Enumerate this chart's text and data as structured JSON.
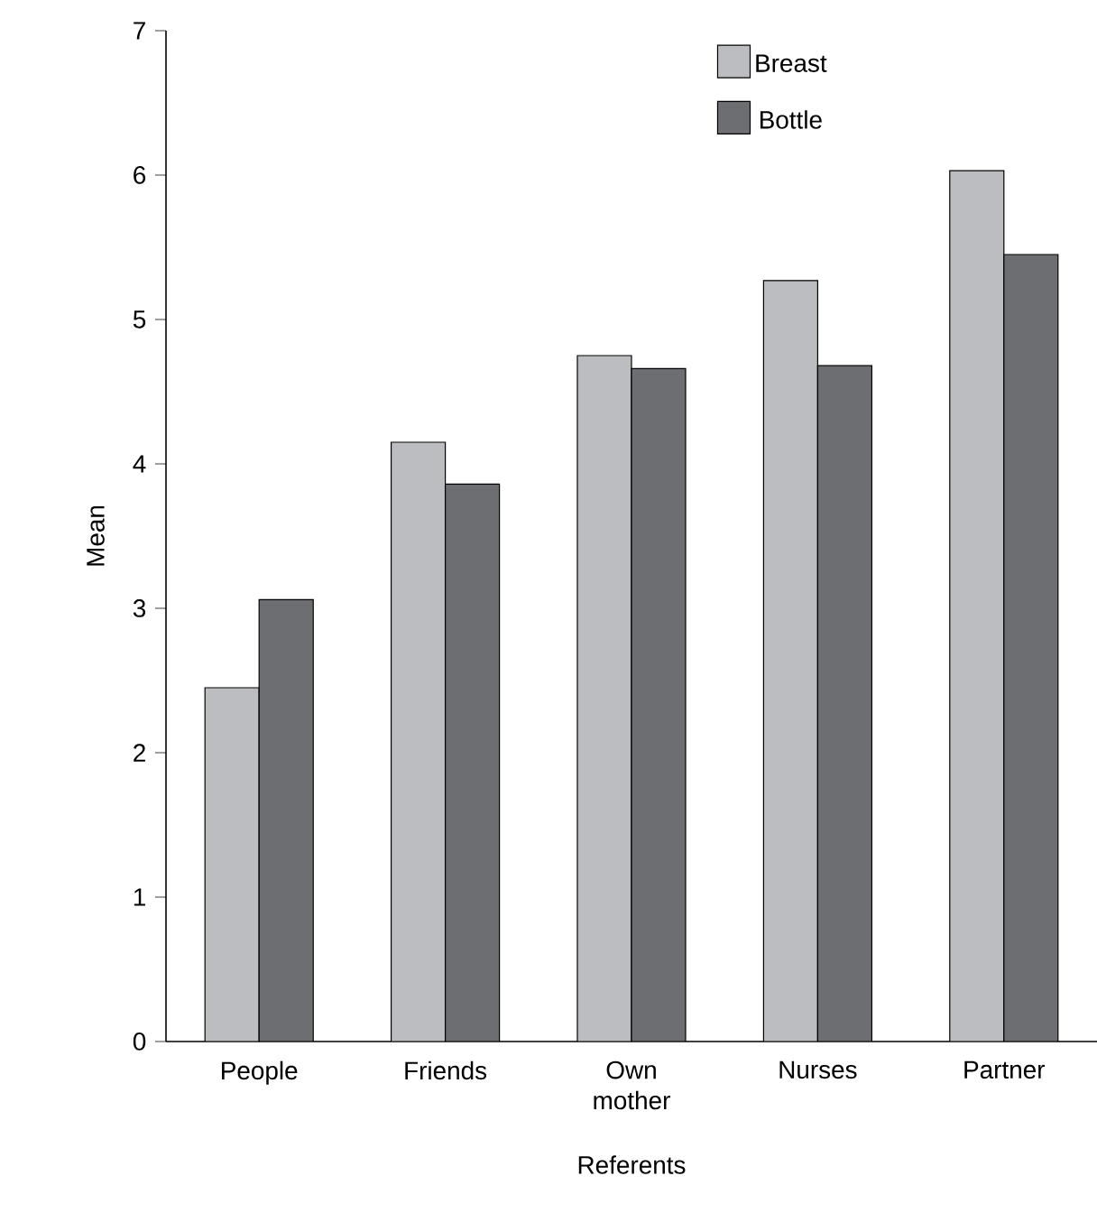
{
  "chart_data": {
    "type": "bar",
    "xlabel": "Referents",
    "ylabel": "Mean",
    "categories": [
      "People",
      "Friends",
      "Own mother",
      "Nurses",
      "Partner"
    ],
    "series": [
      {
        "name": "Breast",
        "color": "#bcbdc0",
        "values": [
          2.45,
          4.15,
          4.75,
          5.27,
          6.03
        ]
      },
      {
        "name": "Bottle",
        "color": "#6d6e72",
        "values": [
          3.06,
          3.86,
          4.66,
          4.68,
          5.45
        ]
      }
    ],
    "ylim": [
      0,
      7
    ],
    "yticks": [
      0,
      1,
      2,
      3,
      4,
      5,
      6,
      7
    ],
    "legend": "top right",
    "grid": false
  }
}
